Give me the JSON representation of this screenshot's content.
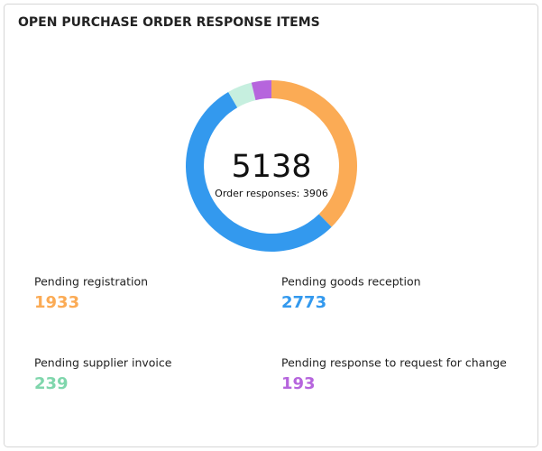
{
  "chart_data": {
    "type": "donut",
    "title": "OPEN PURCHASE ORDER RESPONSE ITEMS",
    "center_value": 5138,
    "center_label": "Order responses: 3906",
    "categories": [
      "Pending registration",
      "Pending goods reception",
      "Pending supplier invoice",
      "Pending response to request for change"
    ],
    "values": [
      1933,
      2773,
      239,
      193
    ],
    "colors": [
      "#fbab55",
      "#3399ee",
      "#c6efdf",
      "#b665dd"
    ],
    "label_colors": [
      "#fbab55",
      "#3399ee",
      "#7fd6ac",
      "#b665dd"
    ]
  }
}
